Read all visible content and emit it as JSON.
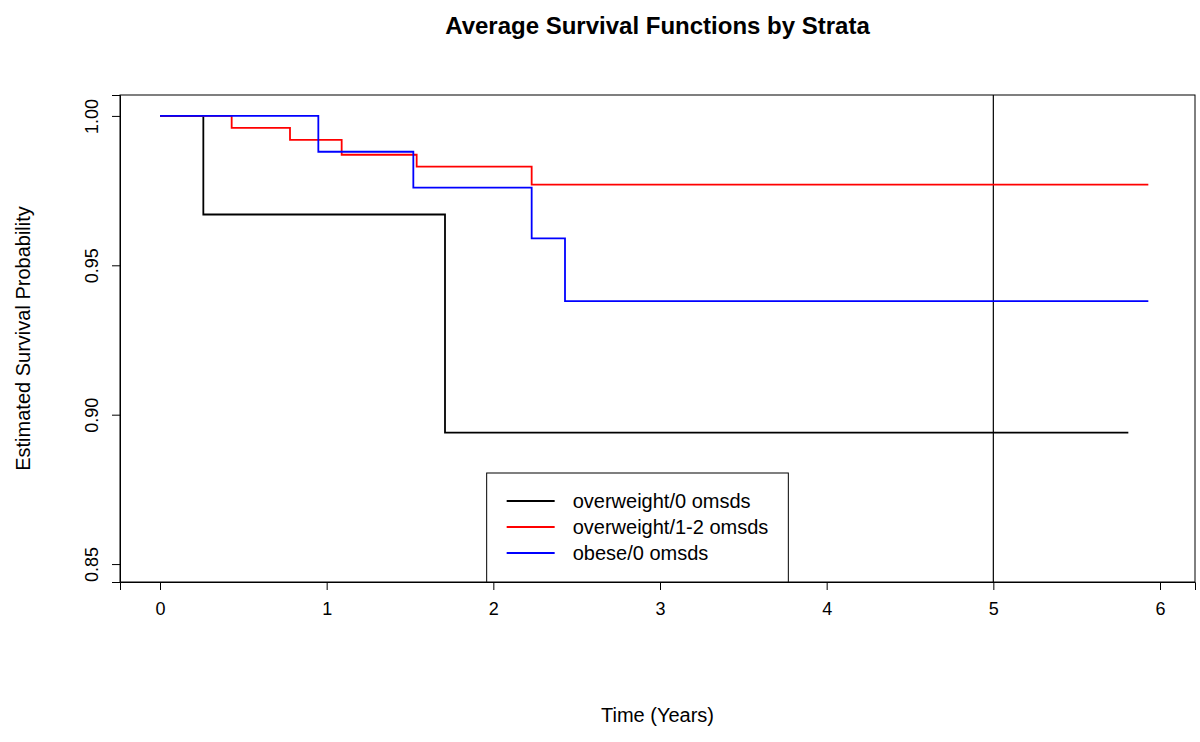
{
  "chart_data": {
    "type": "step",
    "title": "Average Survival Functions by Strata",
    "x_label": "Time (Years)",
    "y_label": "Estimated Survival Probability",
    "xlim": [
      -0.24,
      6.21
    ],
    "ylim": [
      0.844,
      1.007
    ],
    "xticks": [
      0,
      1,
      2,
      3,
      4,
      5,
      6
    ],
    "yticks": [
      0.85,
      {
        "value": 0.9,
        "label": "0.90"
      },
      0.95,
      {
        "value": 1,
        "label": "1.00"
      }
    ],
    "vlines": [
      5
    ],
    "legend": "bottom",
    "grid": false,
    "series": [
      {
        "name": "overweight/0 omsds",
        "color": "#000000",
        "x": [
          0,
          0.26,
          1.71,
          5.81
        ],
        "values": [
          1,
          0.967,
          0.894,
          0.894
        ]
      },
      {
        "name": "overweight/1-2 omsds",
        "color": "#ff0000",
        "x": [
          0,
          0.43,
          0.78,
          1.09,
          1.54,
          2.23,
          5.93
        ],
        "values": [
          1,
          0.996,
          0.992,
          0.987,
          0.983,
          0.977,
          0.977
        ]
      },
      {
        "name": "obese/0 omsds",
        "color": "#0000ff",
        "x": [
          0,
          0.95,
          1.52,
          2.23,
          2.43,
          5.93
        ],
        "values": [
          1,
          0.988,
          0.976,
          0.959,
          0.938,
          0.938
        ]
      }
    ]
  }
}
